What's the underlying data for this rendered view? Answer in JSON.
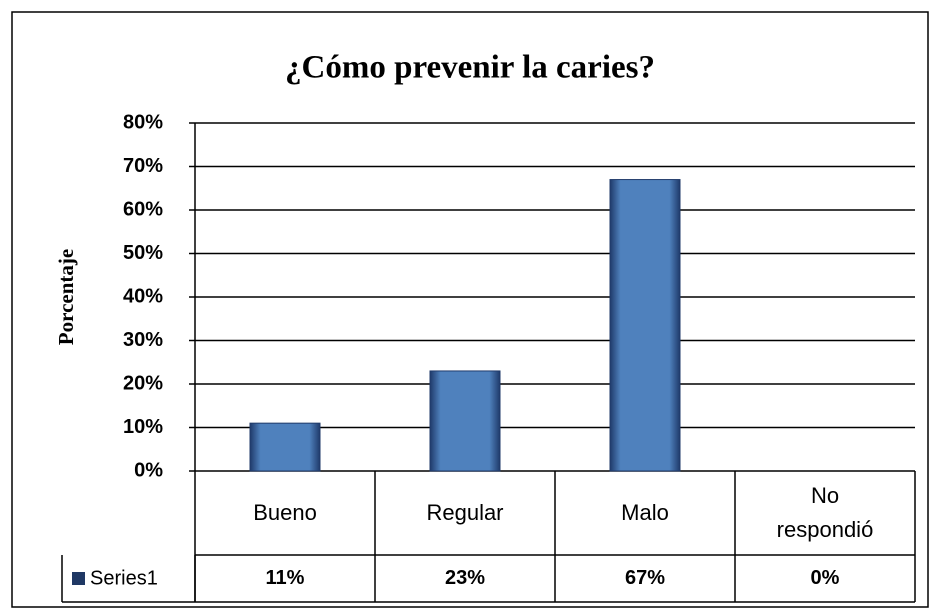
{
  "chart_data": {
    "type": "bar",
    "title": "¿Cómo prevenir la caries?",
    "y_label": "Porcentaje",
    "categories": [
      "Bueno",
      "Regular",
      "Malo",
      "No respondió"
    ],
    "series": [
      {
        "name": "Series1",
        "color": "#4f81bd",
        "values": [
          11,
          23,
          67,
          0
        ],
        "value_labels": [
          "11%",
          "23%",
          "67%",
          "0%"
        ]
      }
    ],
    "ylim": [
      0,
      80
    ],
    "yticks": [
      {
        "value": 0,
        "label": "0%"
      },
      {
        "value": 10,
        "label": "10%"
      },
      {
        "value": 20,
        "label": "20%"
      },
      {
        "value": 30,
        "label": "30%"
      },
      {
        "value": 40,
        "label": "40%"
      },
      {
        "value": 50,
        "label": "50%"
      },
      {
        "value": 60,
        "label": "60%"
      },
      {
        "value": 70,
        "label": "70%"
      },
      {
        "value": 80,
        "label": "80%"
      }
    ],
    "grid": true,
    "data_table": true
  }
}
